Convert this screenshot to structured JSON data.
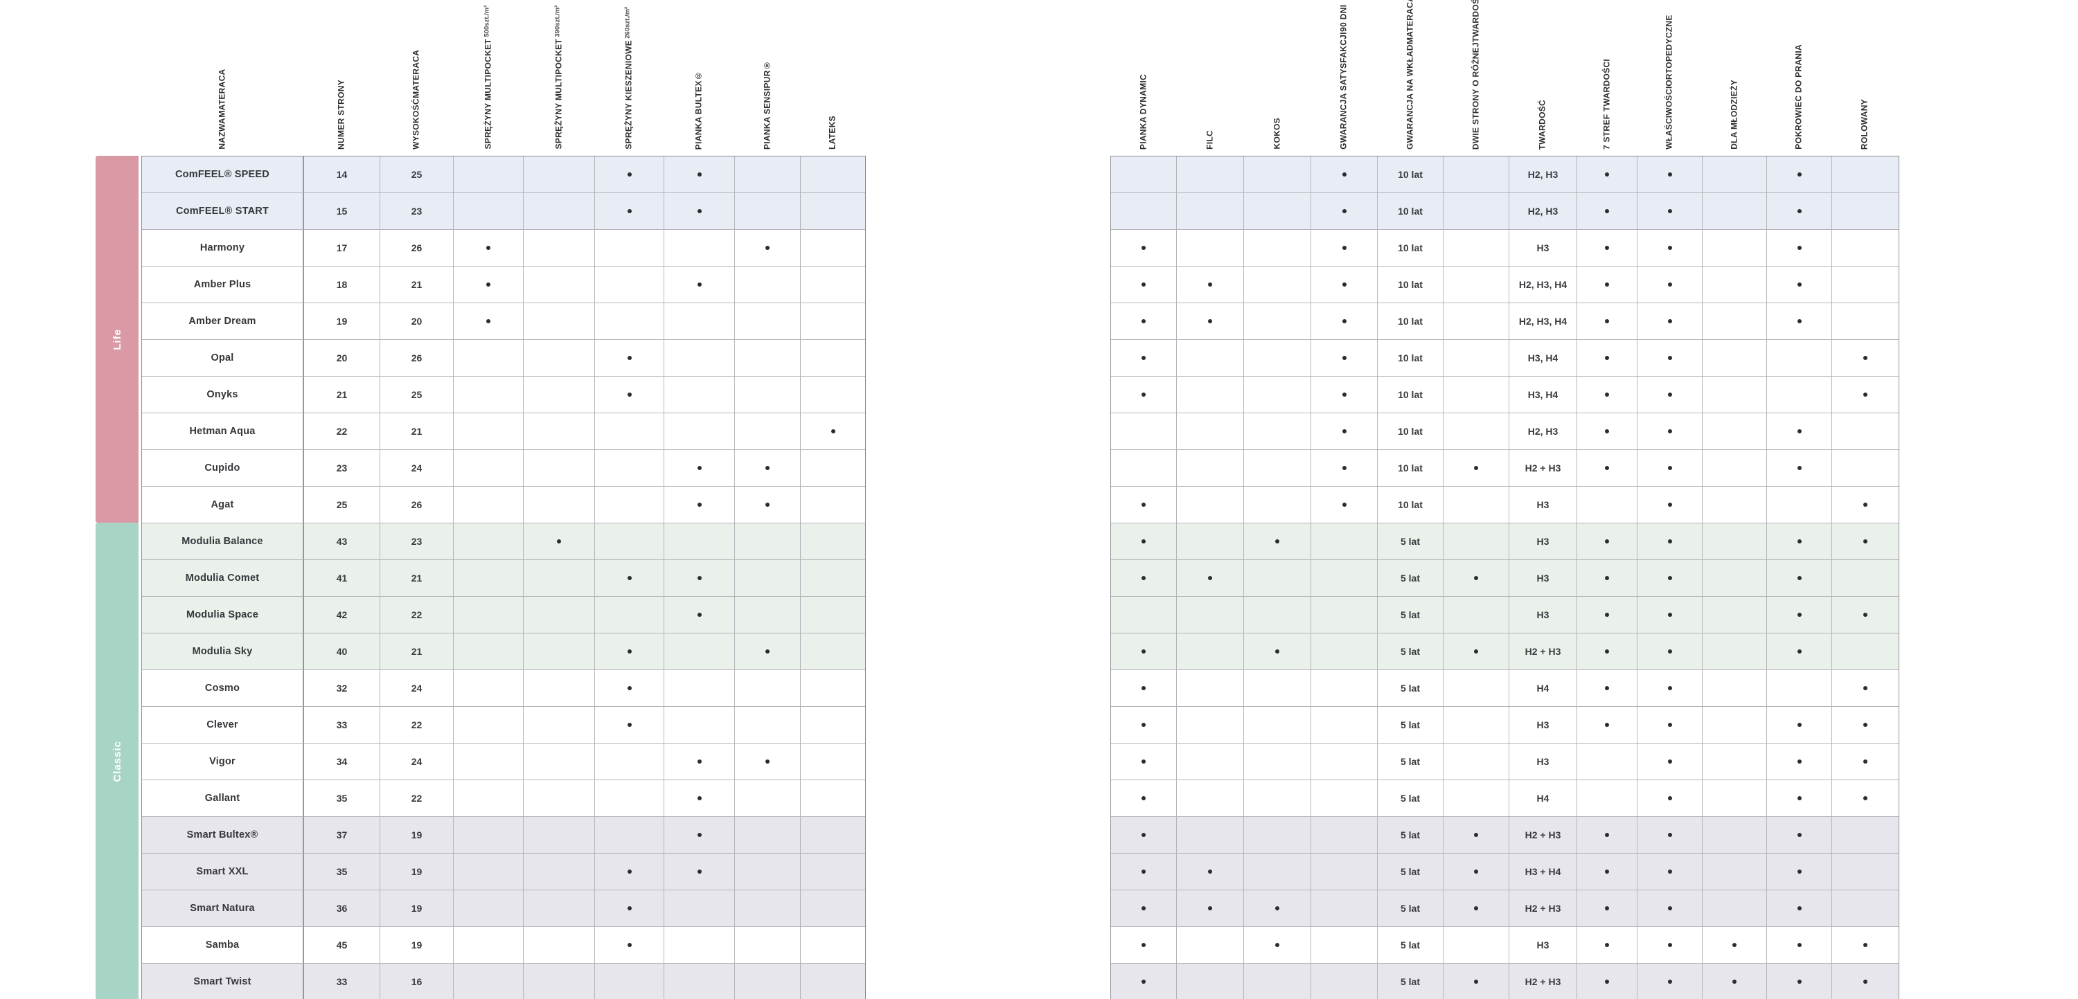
{
  "groups": {
    "life": "Life",
    "classic": "Classic"
  },
  "colors": {
    "life_band": "#d99aa6",
    "classic_band": "#a7d4c5",
    "row_blue": "#e7ecf5",
    "row_green": "#e9f1ea",
    "row_gray": "#e7e6ec",
    "grid_line": "#b5b4ba",
    "dot": "#2c2c30"
  },
  "left_table": {
    "headers": [
      {
        "id": "name",
        "lines": [
          "NAZWA",
          "MATERACA"
        ]
      },
      {
        "id": "page",
        "lines": [
          "NUMER STRONY"
        ]
      },
      {
        "id": "height",
        "lines": [
          "WYSOKOŚĆ",
          "MATERACA"
        ]
      },
      {
        "id": "mp500",
        "lines": [
          "SPRĘŻYNY MULTIPOCKET"
        ],
        "sub": "500szt./m²"
      },
      {
        "id": "mp390",
        "lines": [
          "SPRĘŻYNY MULTIPOCKET"
        ],
        "sub": "390szt./m²"
      },
      {
        "id": "kiesz260",
        "lines": [
          "SPRĘŻYNY KIESZENIOWE"
        ],
        "sub": "260szt./m²"
      },
      {
        "id": "bultex",
        "lines": [
          "PIANKA BULTEX®"
        ]
      },
      {
        "id": "sensipur",
        "lines": [
          "PIANKA SENSIPUR®"
        ]
      },
      {
        "id": "lateks",
        "lines": [
          "LATEKS"
        ]
      }
    ]
  },
  "right_table": {
    "headers": [
      {
        "id": "dynamic",
        "lines": [
          "PIANKA DYNAMIC"
        ]
      },
      {
        "id": "filc",
        "lines": [
          "FILC"
        ]
      },
      {
        "id": "kokos",
        "lines": [
          "KOKOS"
        ]
      },
      {
        "id": "satys",
        "lines": [
          "GWARANCJA SATYSFAKCJI",
          "90 DNI"
        ]
      },
      {
        "id": "gwarancja",
        "lines": [
          "GWARANCJA NA WKŁAD",
          "MATERACA"
        ]
      },
      {
        "id": "dwie",
        "lines": [
          "DWIE STRONY O RÓŻNEJ",
          "TWARDOŚCI"
        ]
      },
      {
        "id": "twardosc",
        "lines": [
          "TWARDOŚĆ"
        ]
      },
      {
        "id": "stref7",
        "lines": [
          "7 STREF TWARDOŚCI"
        ]
      },
      {
        "id": "orto",
        "lines": [
          "WŁAŚCIWOŚCI",
          "ORTOPEDYCZNE"
        ]
      },
      {
        "id": "mlodziez",
        "lines": [
          "DLA MŁODZIEŻY"
        ]
      },
      {
        "id": "pokrowiec",
        "lines": [
          "POKROWIEC DO PRANIA"
        ]
      },
      {
        "id": "rolowany",
        "lines": [
          "ROLOWANY"
        ]
      }
    ]
  },
  "rows": [
    {
      "group": "life",
      "tint": "blue",
      "name": "ComFEEL® SPEED",
      "page": "14",
      "height": "25",
      "left_dots": [
        "kiesz260",
        "bultex"
      ],
      "right_dots": [
        "satys",
        "stref7",
        "orto",
        "pokrowiec"
      ],
      "gwarancja": "10 lat",
      "twardosc": "H2, H3"
    },
    {
      "group": "life",
      "tint": "blue",
      "name": "ComFEEL® START",
      "page": "15",
      "height": "23",
      "left_dots": [
        "kiesz260",
        "bultex"
      ],
      "right_dots": [
        "satys",
        "stref7",
        "orto",
        "pokrowiec"
      ],
      "gwarancja": "10 lat",
      "twardosc": "H2, H3"
    },
    {
      "group": "life",
      "tint": "white",
      "name": "Harmony",
      "page": "17",
      "height": "26",
      "left_dots": [
        "mp500",
        "sensipur"
      ],
      "right_dots": [
        "dynamic",
        "satys",
        "stref7",
        "orto",
        "pokrowiec"
      ],
      "gwarancja": "10 lat",
      "twardosc": "H3"
    },
    {
      "group": "life",
      "tint": "white",
      "name": "Amber Plus",
      "page": "18",
      "height": "21",
      "left_dots": [
        "mp500",
        "bultex"
      ],
      "right_dots": [
        "dynamic",
        "filc",
        "satys",
        "stref7",
        "orto",
        "pokrowiec"
      ],
      "gwarancja": "10 lat",
      "twardosc": "H2, H3, H4"
    },
    {
      "group": "life",
      "tint": "white",
      "name": "Amber Dream",
      "page": "19",
      "height": "20",
      "left_dots": [
        "mp500"
      ],
      "right_dots": [
        "dynamic",
        "filc",
        "satys",
        "stref7",
        "orto",
        "pokrowiec"
      ],
      "gwarancja": "10 lat",
      "twardosc": "H2, H3, H4"
    },
    {
      "group": "life",
      "tint": "white",
      "name": "Opal",
      "page": "20",
      "height": "26",
      "left_dots": [
        "kiesz260"
      ],
      "right_dots": [
        "dynamic",
        "satys",
        "stref7",
        "orto",
        "rolowany"
      ],
      "gwarancja": "10 lat",
      "twardosc": "H3, H4"
    },
    {
      "group": "life",
      "tint": "white",
      "name": "Onyks",
      "page": "21",
      "height": "25",
      "left_dots": [
        "kiesz260"
      ],
      "right_dots": [
        "dynamic",
        "satys",
        "stref7",
        "orto",
        "rolowany"
      ],
      "gwarancja": "10 lat",
      "twardosc": "H3, H4"
    },
    {
      "group": "life",
      "tint": "white",
      "name": "Hetman Aqua",
      "page": "22",
      "height": "21",
      "left_dots": [
        "lateks"
      ],
      "right_dots": [
        "satys",
        "stref7",
        "orto",
        "pokrowiec"
      ],
      "gwarancja": "10 lat",
      "twardosc": "H2, H3"
    },
    {
      "group": "life",
      "tint": "white",
      "name": "Cupido",
      "page": "23",
      "height": "24",
      "left_dots": [
        "bultex",
        "sensipur"
      ],
      "right_dots": [
        "satys",
        "dwie",
        "stref7",
        "orto",
        "pokrowiec"
      ],
      "gwarancja": "10 lat",
      "twardosc": "H2 + H3"
    },
    {
      "group": "life",
      "tint": "white",
      "name": "Agat",
      "page": "25",
      "height": "26",
      "left_dots": [
        "bultex",
        "sensipur"
      ],
      "right_dots": [
        "dynamic",
        "satys",
        "orto",
        "rolowany"
      ],
      "gwarancja": "10 lat",
      "twardosc": "H3"
    },
    {
      "group": "classic",
      "tint": "green",
      "name": "Modulia Balance",
      "page": "43",
      "height": "23",
      "left_dots": [
        "mp390"
      ],
      "right_dots": [
        "dynamic",
        "kokos",
        "stref7",
        "orto",
        "pokrowiec",
        "rolowany"
      ],
      "gwarancja": "5 lat",
      "twardosc": "H3"
    },
    {
      "group": "classic",
      "tint": "green",
      "name": "Modulia Comet",
      "page": "41",
      "height": "21",
      "left_dots": [
        "kiesz260",
        "bultex"
      ],
      "right_dots": [
        "dynamic",
        "filc",
        "dwie",
        "stref7",
        "orto",
        "pokrowiec"
      ],
      "gwarancja": "5 lat",
      "twardosc": "H3"
    },
    {
      "group": "classic",
      "tint": "green",
      "name": "Modulia Space",
      "page": "42",
      "height": "22",
      "left_dots": [
        "bultex"
      ],
      "right_dots": [
        "stref7",
        "orto",
        "pokrowiec",
        "rolowany"
      ],
      "gwarancja": "5 lat",
      "twardosc": "H3"
    },
    {
      "group": "classic",
      "tint": "green",
      "name": "Modulia Sky",
      "page": "40",
      "height": "21",
      "left_dots": [
        "kiesz260",
        "sensipur"
      ],
      "right_dots": [
        "dynamic",
        "kokos",
        "dwie",
        "stref7",
        "orto",
        "pokrowiec"
      ],
      "gwarancja": "5 lat",
      "twardosc": "H2 + H3"
    },
    {
      "group": "classic",
      "tint": "white",
      "name": "Cosmo",
      "page": "32",
      "height": "24",
      "left_dots": [
        "kiesz260"
      ],
      "right_dots": [
        "dynamic",
        "stref7",
        "orto",
        "rolowany"
      ],
      "gwarancja": "5 lat",
      "twardosc": "H4"
    },
    {
      "group": "classic",
      "tint": "white",
      "name": "Clever",
      "page": "33",
      "height": "22",
      "left_dots": [
        "kiesz260"
      ],
      "right_dots": [
        "dynamic",
        "stref7",
        "orto",
        "pokrowiec",
        "rolowany"
      ],
      "gwarancja": "5 lat",
      "twardosc": "H3"
    },
    {
      "group": "classic",
      "tint": "white",
      "name": "Vigor",
      "page": "34",
      "height": "24",
      "left_dots": [
        "bultex",
        "sensipur"
      ],
      "right_dots": [
        "dynamic",
        "orto",
        "pokrowiec",
        "rolowany"
      ],
      "gwarancja": "5 lat",
      "twardosc": "H3"
    },
    {
      "group": "classic",
      "tint": "white",
      "name": "Gallant",
      "page": "35",
      "height": "22",
      "left_dots": [
        "bultex"
      ],
      "right_dots": [
        "dynamic",
        "orto",
        "pokrowiec",
        "rolowany"
      ],
      "gwarancja": "5 lat",
      "twardosc": "H4"
    },
    {
      "group": "classic",
      "tint": "gray",
      "name": "Smart Bultex®",
      "page": "37",
      "height": "19",
      "left_dots": [
        "bultex"
      ],
      "right_dots": [
        "dynamic",
        "dwie",
        "stref7",
        "orto",
        "pokrowiec"
      ],
      "gwarancja": "5 lat",
      "twardosc": "H2 + H3"
    },
    {
      "group": "classic",
      "tint": "gray",
      "name": "Smart XXL",
      "page": "35",
      "height": "19",
      "left_dots": [
        "kiesz260",
        "bultex"
      ],
      "right_dots": [
        "dynamic",
        "filc",
        "dwie",
        "stref7",
        "orto",
        "pokrowiec"
      ],
      "gwarancja": "5 lat",
      "twardosc": "H3 + H4"
    },
    {
      "group": "classic",
      "tint": "gray",
      "name": "Smart Natura",
      "page": "36",
      "height": "19",
      "left_dots": [
        "kiesz260"
      ],
      "right_dots": [
        "dynamic",
        "filc",
        "kokos",
        "dwie",
        "stref7",
        "orto",
        "pokrowiec"
      ],
      "gwarancja": "5 lat",
      "twardosc": "H2 + H3"
    },
    {
      "group": "classic",
      "tint": "white",
      "name": "Samba",
      "page": "45",
      "height": "19",
      "left_dots": [
        "kiesz260"
      ],
      "right_dots": [
        "dynamic",
        "kokos",
        "stref7",
        "orto",
        "mlodziez",
        "pokrowiec",
        "rolowany"
      ],
      "gwarancja": "5 lat",
      "twardosc": "H3"
    },
    {
      "group": "classic",
      "tint": "gray",
      "name": "Smart Twist",
      "page": "33",
      "height": "16",
      "left_dots": [],
      "right_dots": [
        "dynamic",
        "dwie",
        "stref7",
        "orto",
        "mlodziez",
        "pokrowiec",
        "rolowany"
      ],
      "gwarancja": "5 lat",
      "twardosc": "H2 + H3"
    }
  ]
}
